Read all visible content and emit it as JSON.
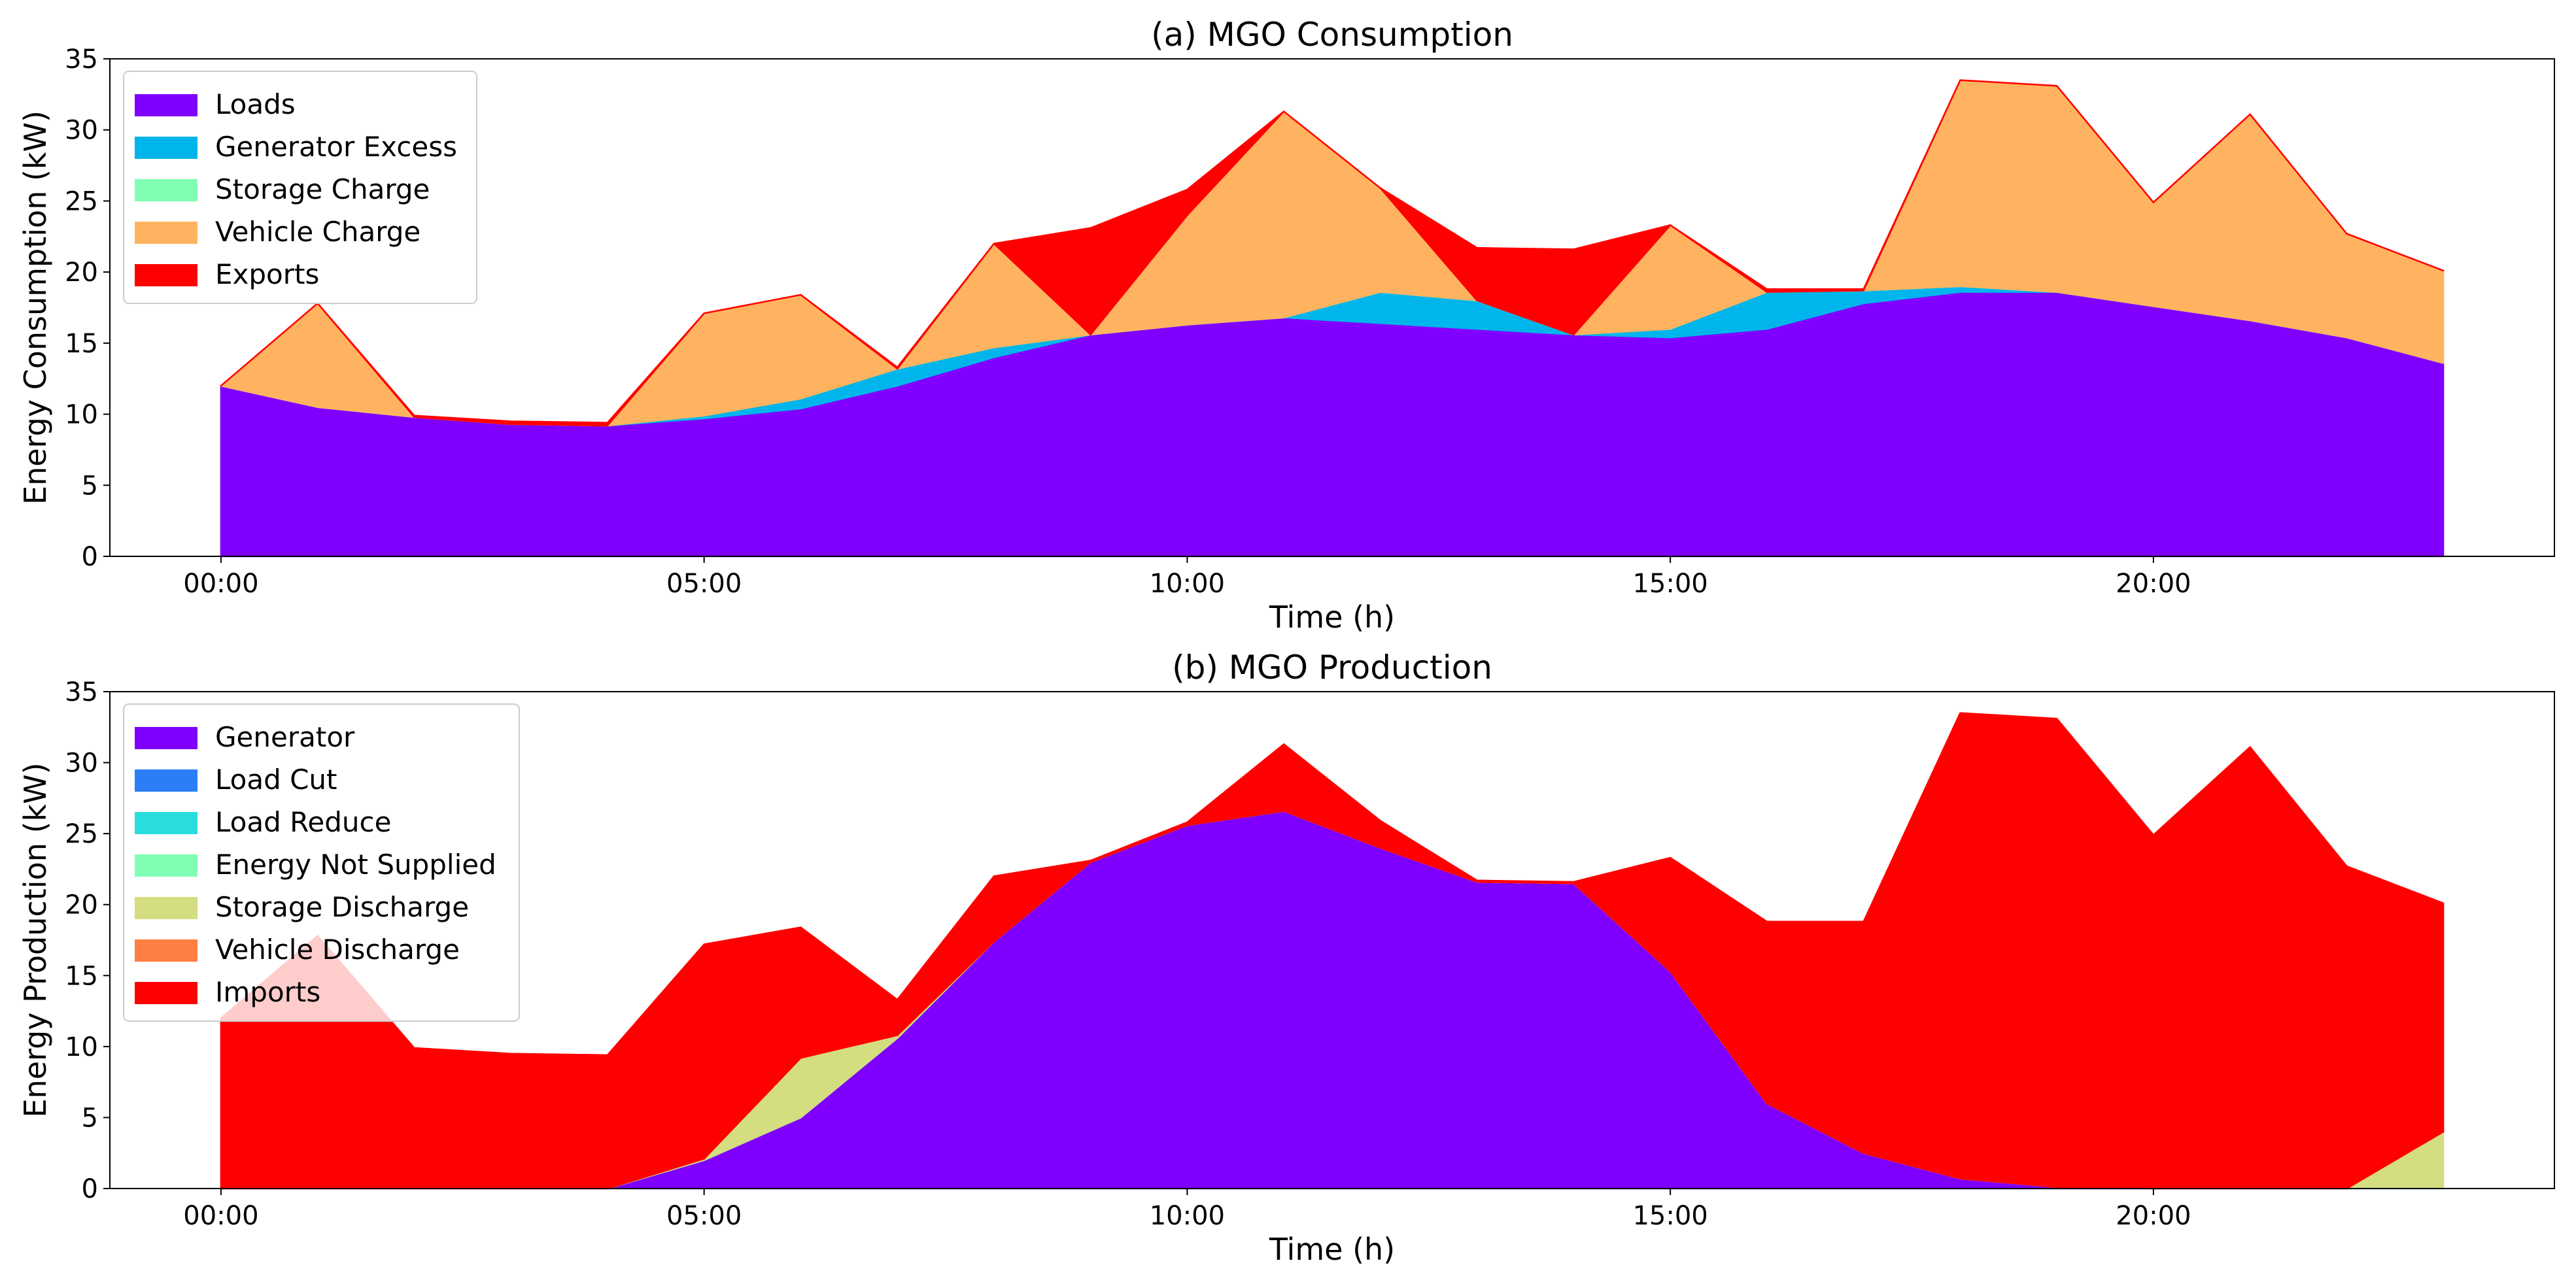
{
  "chart_data": [
    {
      "type": "area",
      "stacked": true,
      "title": "(a) MGO Consumption",
      "xlabel": "Time (h)",
      "ylabel": "Energy Consumption (kW)",
      "xlim": [
        -1.15,
        24.15
      ],
      "ylim": [
        0,
        35
      ],
      "x": [
        0,
        1,
        2,
        3,
        4,
        5,
        6,
        7,
        8,
        9,
        10,
        11,
        12,
        13,
        14,
        15,
        16,
        17,
        18,
        19,
        20,
        21,
        22,
        23
      ],
      "x_ticks": [
        0,
        5,
        10,
        15,
        20
      ],
      "x_tick_labels": [
        "00:00",
        "05:00",
        "10:00",
        "15:00",
        "20:00"
      ],
      "y_ticks": [
        0,
        5,
        10,
        15,
        20,
        25,
        30,
        35
      ],
      "y_tick_labels": [
        "0",
        "5",
        "10",
        "15",
        "20",
        "25",
        "30",
        "35"
      ],
      "legend_position": "top-left",
      "series": [
        {
          "name": "Loads",
          "color": "#8000ff",
          "values": [
            12.0,
            10.5,
            9.8,
            9.3,
            9.2,
            9.7,
            10.4,
            12.0,
            14.0,
            15.6,
            16.3,
            16.8,
            16.4,
            16.0,
            15.6,
            15.4,
            16.0,
            17.8,
            18.6,
            18.6,
            17.6,
            16.6,
            15.4,
            13.6
          ]
        },
        {
          "name": "Generator Excess",
          "color": "#00b5eb",
          "values": [
            0,
            0,
            0,
            0,
            0,
            0.2,
            0.7,
            1.2,
            0.7,
            0,
            0,
            0,
            2.2,
            2.0,
            0,
            0.6,
            2.6,
            0.9,
            0.4,
            0,
            0,
            0,
            0,
            0
          ]
        },
        {
          "name": "Storage Charge",
          "color": "#80ffb4",
          "values": [
            0,
            0,
            0,
            0,
            0,
            0,
            0,
            0,
            0,
            0,
            0,
            0,
            0,
            0,
            0,
            0,
            0,
            0,
            0,
            0,
            0,
            0,
            0,
            0
          ]
        },
        {
          "name": "Vehicle Charge",
          "color": "#ffb360",
          "values": [
            0,
            7.3,
            0,
            0,
            0,
            7.2,
            7.3,
            0,
            7.3,
            0,
            7.7,
            14.5,
            7.3,
            0,
            0,
            7.3,
            0,
            0,
            14.5,
            14.5,
            7.3,
            14.5,
            7.3,
            6.5
          ]
        },
        {
          "name": "Exports",
          "color": "#ff0000",
          "values": [
            0,
            0,
            0.1,
            0.2,
            0.2,
            0,
            0,
            0.1,
            0,
            7.5,
            1.8,
            0,
            0,
            3.7,
            6.0,
            0,
            0.2,
            0.1,
            0,
            0,
            0,
            0,
            0,
            0
          ]
        }
      ]
    },
    {
      "type": "area",
      "stacked": true,
      "title": "(b) MGO Production",
      "xlabel": "Time (h)",
      "ylabel": "Energy Production (kW)",
      "xlim": [
        -1.15,
        24.15
      ],
      "ylim": [
        0,
        35
      ],
      "x": [
        0,
        1,
        2,
        3,
        4,
        5,
        6,
        7,
        8,
        9,
        10,
        11,
        12,
        13,
        14,
        15,
        16,
        17,
        18,
        19,
        20,
        21,
        22,
        23
      ],
      "x_ticks": [
        0,
        5,
        10,
        15,
        20
      ],
      "x_tick_labels": [
        "00:00",
        "05:00",
        "10:00",
        "15:00",
        "20:00"
      ],
      "y_ticks": [
        0,
        5,
        10,
        15,
        20,
        25,
        30,
        35
      ],
      "y_tick_labels": [
        "0",
        "5",
        "10",
        "15",
        "20",
        "25",
        "30",
        "35"
      ],
      "legend_position": "top-left",
      "series": [
        {
          "name": "Generator",
          "color": "#8000ff",
          "values": [
            0,
            0,
            0,
            0,
            0,
            2.0,
            5.0,
            10.6,
            17.4,
            23.0,
            25.6,
            26.6,
            24.0,
            21.6,
            21.5,
            15.3,
            6.0,
            2.5,
            0.7,
            0.1,
            0,
            0,
            0,
            0
          ]
        },
        {
          "name": "Load Cut",
          "color": "#2c7ef7",
          "values": [
            0,
            0,
            0,
            0,
            0,
            0,
            0,
            0,
            0,
            0,
            0,
            0,
            0,
            0,
            0,
            0,
            0,
            0,
            0,
            0,
            0,
            0,
            0,
            0
          ]
        },
        {
          "name": "Load Reduce",
          "color": "#2adddd",
          "values": [
            0,
            0,
            0,
            0,
            0,
            0,
            0,
            0,
            0,
            0,
            0,
            0,
            0,
            0,
            0,
            0,
            0,
            0,
            0,
            0,
            0,
            0,
            0,
            0
          ]
        },
        {
          "name": "Energy Not Supplied",
          "color": "#80ffb4",
          "values": [
            0,
            0,
            0,
            0,
            0,
            0,
            0,
            0,
            0,
            0,
            0,
            0,
            0,
            0,
            0,
            0,
            0,
            0,
            0,
            0,
            0,
            0,
            0,
            0
          ]
        },
        {
          "name": "Storage Discharge",
          "color": "#d4dd80",
          "values": [
            0,
            0,
            0,
            0,
            0,
            0.1,
            4.2,
            0.2,
            0,
            0,
            0,
            0,
            0,
            0,
            0,
            0,
            0,
            0,
            0,
            0,
            0,
            0,
            0,
            4.0
          ]
        },
        {
          "name": "Vehicle Discharge",
          "color": "#ff7e41",
          "values": [
            0,
            0,
            0,
            0,
            0,
            0,
            0,
            0,
            0,
            0,
            0,
            0,
            0,
            0,
            0,
            0,
            0,
            0,
            0,
            0,
            0,
            0,
            0,
            0
          ]
        },
        {
          "name": "Imports",
          "color": "#ff0000",
          "values": [
            12.0,
            17.8,
            9.9,
            9.5,
            9.4,
            15.1,
            9.2,
            2.5,
            4.6,
            0.1,
            0.2,
            4.7,
            1.9,
            0.1,
            0.1,
            8.0,
            12.8,
            16.3,
            32.8,
            33.0,
            24.9,
            31.1,
            22.7,
            16.1
          ]
        }
      ]
    }
  ]
}
